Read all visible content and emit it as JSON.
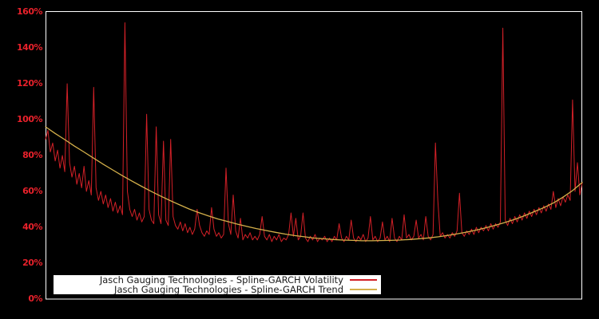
{
  "chart_data": {
    "type": "line",
    "title": "",
    "xlabel": "",
    "ylabel": "",
    "background_color": "#000000",
    "plot_border_color": "#ffffff",
    "grid": false,
    "x_axis_labels_visible": false,
    "ylim": [
      0,
      160
    ],
    "ytick_color": "#e8212b",
    "yticks": [
      {
        "value": 0,
        "label": "0%"
      },
      {
        "value": 20,
        "label": "20%"
      },
      {
        "value": 40,
        "label": "40%"
      },
      {
        "value": 60,
        "label": "60%"
      },
      {
        "value": 80,
        "label": "80%"
      },
      {
        "value": 100,
        "label": "100%"
      },
      {
        "value": 120,
        "label": "120%"
      },
      {
        "value": 140,
        "label": "140%"
      },
      {
        "value": 160,
        "label": "160%"
      }
    ],
    "legend": {
      "position": "bottom-left-inside",
      "background": "#ffffff",
      "text_color": "#1a1a1a"
    },
    "series": [
      {
        "name": "Jasch Gauging Technologies - Spline-GARCH Volatility",
        "color": "#d22027",
        "stroke_width": 1,
        "values": [
          89,
          94,
          82,
          87,
          77,
          83,
          73,
          80,
          71,
          120,
          76,
          68,
          74,
          64,
          70,
          62,
          74,
          60,
          66,
          58,
          118,
          62,
          55,
          60,
          53,
          58,
          51,
          56,
          49,
          54,
          48,
          52,
          47,
          154,
          60,
          50,
          46,
          50,
          44,
          48,
          43,
          46,
          103,
          50,
          44,
          42,
          96,
          47,
          42,
          88,
          44,
          41,
          89,
          46,
          41,
          39,
          43,
          38,
          42,
          37,
          40,
          36,
          39,
          50,
          41,
          37,
          35,
          38,
          36,
          51,
          39,
          35,
          37,
          34,
          36,
          73,
          42,
          36,
          58,
          38,
          34,
          45,
          33,
          36,
          34,
          37,
          33,
          35,
          33,
          36,
          46,
          35,
          33,
          36,
          32,
          35,
          33,
          36,
          32,
          34,
          33,
          36,
          48,
          35,
          45,
          33,
          35,
          48,
          34,
          32,
          35,
          33,
          36,
          32,
          34,
          33,
          35,
          32,
          34,
          32,
          35,
          33,
          42,
          34,
          32,
          35,
          33,
          44,
          34,
          32,
          35,
          33,
          36,
          32,
          34,
          46,
          33,
          35,
          32,
          34,
          43,
          33,
          35,
          32,
          45,
          34,
          32,
          35,
          33,
          47,
          34,
          36,
          33,
          35,
          44,
          34,
          36,
          33,
          46,
          35,
          33,
          36,
          87,
          55,
          35,
          37,
          34,
          36,
          34,
          37,
          35,
          38,
          59,
          37,
          35,
          38,
          36,
          39,
          36,
          40,
          37,
          40,
          38,
          41,
          38,
          42,
          39,
          42,
          40,
          43,
          151,
          44,
          41,
          45,
          42,
          46,
          43,
          47,
          44,
          48,
          45,
          49,
          46,
          50,
          47,
          51,
          48,
          52,
          49,
          53,
          50,
          60,
          51,
          56,
          52,
          57,
          54,
          58,
          55,
          111,
          60,
          76,
          58,
          65
        ]
      },
      {
        "name": "Jasch Gauging Technologies - Spline-GARCH Trend",
        "color": "#d4b04a",
        "stroke_width": 1.3,
        "values": [
          96.0,
          92.3,
          88.9,
          85.3,
          82.0,
          78.6,
          75.2,
          72.0,
          68.8,
          65.8,
          62.9,
          60.1,
          57.4,
          54.9,
          52.5,
          50.2,
          48.2,
          46.3,
          44.6,
          43.2,
          41.8,
          40.5,
          39.3,
          38.2,
          37.2,
          36.2,
          35.4,
          34.7,
          34.0,
          33.6,
          33.2,
          32.9,
          32.7,
          32.5,
          32.5,
          32.6,
          32.7,
          32.9,
          33.2,
          33.6,
          34.1,
          34.7,
          35.5,
          36.4,
          37.4,
          38.5,
          39.8,
          41.2,
          42.8,
          44.5,
          46.5,
          48.7,
          51.0,
          53.6,
          56.8,
          60.5,
          65.0
        ]
      }
    ]
  }
}
